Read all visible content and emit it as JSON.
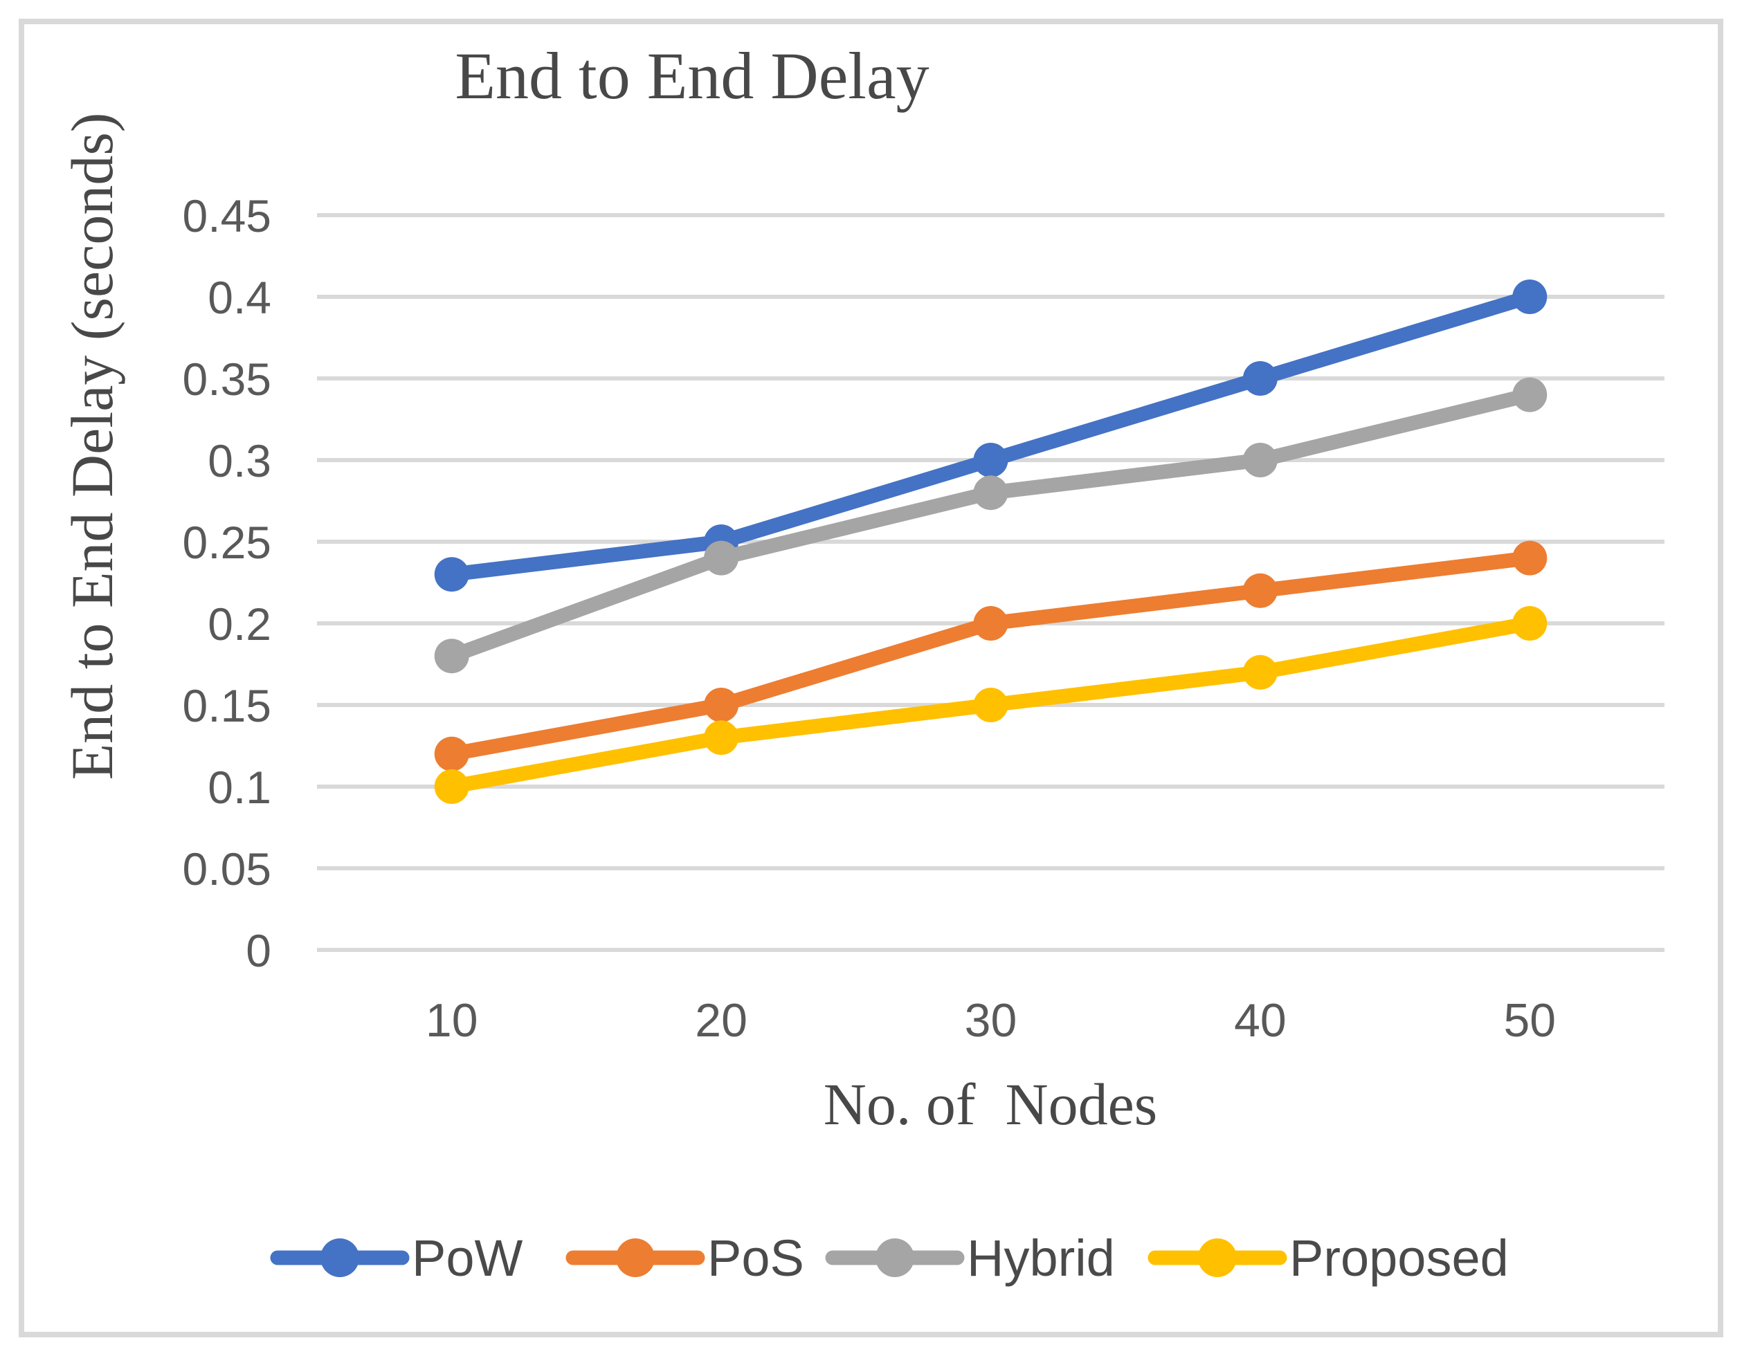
{
  "chart_data": {
    "type": "line",
    "title": "End to End Delay",
    "xlabel": "No. of  Nodes",
    "ylabel": "End to End Delay (seconds)",
    "categories": [
      "10",
      "20",
      "30",
      "40",
      "50"
    ],
    "series": [
      {
        "name": "PoW",
        "color": "#4472C4",
        "values": [
          0.23,
          0.25,
          0.3,
          0.35,
          0.4
        ]
      },
      {
        "name": "PoS",
        "color": "#ED7D31",
        "values": [
          0.12,
          0.15,
          0.2,
          0.22,
          0.24
        ]
      },
      {
        "name": "Hybrid",
        "color": "#A5A5A5",
        "values": [
          0.18,
          0.24,
          0.28,
          0.3,
          0.34
        ]
      },
      {
        "name": "Proposed",
        "color": "#FFC000",
        "values": [
          0.1,
          0.13,
          0.15,
          0.17,
          0.2
        ]
      }
    ],
    "y_ticks": [
      0,
      0.05,
      0.1,
      0.15,
      0.2,
      0.25,
      0.3,
      0.35,
      0.4,
      0.45
    ],
    "y_tick_labels": [
      "0",
      "0.05",
      "0.1",
      "0.15",
      "0.2",
      "0.25",
      "0.3",
      "0.35",
      "0.4",
      "0.45"
    ],
    "ylim": [
      0,
      0.45
    ],
    "grid": "horizontal-only",
    "legend_position": "bottom",
    "marker": "circle",
    "colors": {
      "gridline": "#D9D9D9",
      "frame_border": "#D9D9D9",
      "tick_text": "#595959",
      "title_text": "#484848",
      "legend_text": "#4a4a4a",
      "background": "#FFFFFF"
    }
  }
}
